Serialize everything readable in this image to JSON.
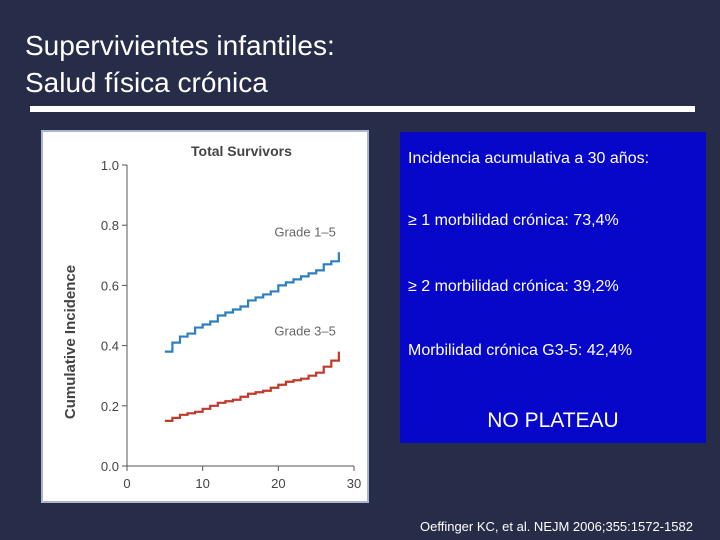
{
  "slide": {
    "title_line1": "Supervivientes infantiles:",
    "title_line2": "Salud física crónica"
  },
  "info_box": {
    "line1": "Incidencia acumulativa a 30 años:",
    "line2": "≥ 1 morbilidad crónica: 73,4%",
    "line3": "≥ 2 morbilidad crónica: 39,2%",
    "line4": "Morbilidad crónica G3-5: 42,4%",
    "plateau": "NO PLATEAU",
    "background": "#0707c9"
  },
  "citation": "Oeffinger KC, et al. NEJM 2006;355:1572-1582",
  "chart_data": {
    "type": "line",
    "title": "Total Survivors",
    "xlabel": "",
    "ylabel": "Cumulative Incidence",
    "xlim": [
      0,
      30
    ],
    "ylim": [
      0.0,
      1.0
    ],
    "xticks": [
      "0",
      "10",
      "20",
      "30"
    ],
    "yticks": [
      "0.0",
      "0.2",
      "0.4",
      "0.6",
      "0.8",
      "1.0"
    ],
    "grid": false,
    "series": [
      {
        "name": "Grade 1–5",
        "color": "#2e7fc0",
        "step": true,
        "x": [
          5,
          6,
          7,
          8,
          9,
          10,
          11,
          12,
          13,
          14,
          15,
          16,
          17,
          18,
          19,
          20,
          21,
          22,
          23,
          24,
          25,
          26,
          27,
          28
        ],
        "y": [
          0.38,
          0.41,
          0.43,
          0.44,
          0.46,
          0.47,
          0.48,
          0.5,
          0.51,
          0.52,
          0.53,
          0.55,
          0.56,
          0.57,
          0.58,
          0.6,
          0.61,
          0.62,
          0.63,
          0.64,
          0.65,
          0.67,
          0.68,
          0.71
        ]
      },
      {
        "name": "Grade 3–5",
        "color": "#c0392b",
        "step": true,
        "x": [
          5,
          6,
          7,
          8,
          9,
          10,
          11,
          12,
          13,
          14,
          15,
          16,
          17,
          18,
          19,
          20,
          21,
          22,
          23,
          24,
          25,
          26,
          27,
          28
        ],
        "y": [
          0.15,
          0.16,
          0.17,
          0.175,
          0.18,
          0.19,
          0.2,
          0.21,
          0.215,
          0.22,
          0.23,
          0.24,
          0.245,
          0.25,
          0.26,
          0.27,
          0.28,
          0.285,
          0.29,
          0.3,
          0.31,
          0.33,
          0.35,
          0.38
        ]
      }
    ]
  }
}
